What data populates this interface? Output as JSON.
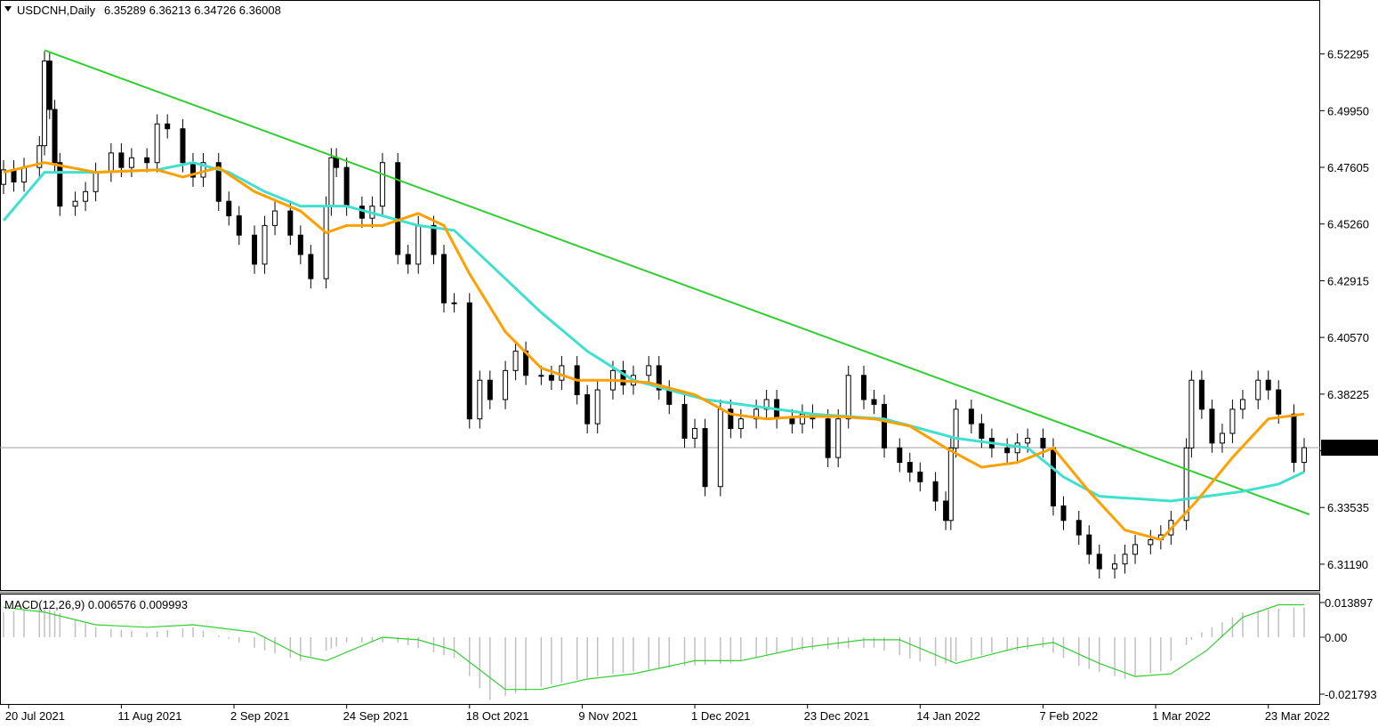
{
  "chart_data": {
    "type": "candlestick",
    "symbol": "USDCNH",
    "timeframe": "Daily",
    "header": {
      "symbol_tf": "USDCNH,Daily",
      "ohlc": "6.35289 6.36213 6.34726 6.36008"
    },
    "last_price": 6.36008,
    "last_price_label": "6.36008",
    "price_axis": {
      "range": [
        6.3012,
        6.5449
      ],
      "ticks": [
        6.52295,
        6.4995,
        6.47605,
        6.4526,
        6.42915,
        6.4057,
        6.38225,
        6.3588,
        6.33535,
        6.3119
      ],
      "tick_labels": [
        "6.52295",
        "6.49950",
        "6.47605",
        "6.45260",
        "6.42915",
        "6.40570",
        "6.38225",
        "",
        "6.33535",
        "6.31190"
      ]
    },
    "date_axis": {
      "start_date": "2021-07-19",
      "end_date": "2022-03-30",
      "labels": [
        "20 Jul 2021",
        "11 Aug 2021",
        "2 Sep 2021",
        "24 Sep 2021",
        "18 Oct 2021",
        "9 Nov 2021",
        "1 Dec 2021",
        "23 Dec 2021",
        "14 Jan 2022",
        "7 Feb 2022",
        "1 Mar 2022",
        "23 Mar 2022"
      ],
      "label_dates": [
        "2021-07-20",
        "2021-08-11",
        "2021-09-02",
        "2021-09-24",
        "2021-10-18",
        "2021-11-09",
        "2021-12-01",
        "2021-12-23",
        "2022-01-14",
        "2022-02-07",
        "2022-03-01",
        "2022-03-23"
      ]
    },
    "close_series": [
      [
        "2021-07-19",
        6.475
      ],
      [
        "2021-07-21",
        6.47
      ],
      [
        "2021-07-23",
        6.476
      ],
      [
        "2021-07-26",
        6.485
      ],
      [
        "2021-07-27",
        6.52
      ],
      [
        "2021-07-28",
        6.5
      ],
      [
        "2021-07-29",
        6.478
      ],
      [
        "2021-07-30",
        6.46
      ],
      [
        "2021-08-02",
        6.462
      ],
      [
        "2021-08-04",
        6.466
      ],
      [
        "2021-08-06",
        6.474
      ],
      [
        "2021-08-09",
        6.482
      ],
      [
        "2021-08-11",
        6.476
      ],
      [
        "2021-08-13",
        6.48
      ],
      [
        "2021-08-16",
        6.478
      ],
      [
        "2021-08-18",
        6.494
      ],
      [
        "2021-08-20",
        6.492
      ],
      [
        "2021-08-23",
        6.478
      ],
      [
        "2021-08-25",
        6.472
      ],
      [
        "2021-08-27",
        6.478
      ],
      [
        "2021-08-30",
        6.462
      ],
      [
        "2021-09-01",
        6.456
      ],
      [
        "2021-09-03",
        6.448
      ],
      [
        "2021-09-06",
        6.436
      ],
      [
        "2021-09-08",
        6.452
      ],
      [
        "2021-09-10",
        6.458
      ],
      [
        "2021-09-13",
        6.448
      ],
      [
        "2021-09-15",
        6.44
      ],
      [
        "2021-09-17",
        6.43
      ],
      [
        "2021-09-20",
        6.46
      ],
      [
        "2021-09-21",
        6.48
      ],
      [
        "2021-09-22",
        6.476
      ],
      [
        "2021-09-24",
        6.46
      ],
      [
        "2021-09-27",
        6.455
      ],
      [
        "2021-09-29",
        6.46
      ],
      [
        "2021-10-01",
        6.478
      ],
      [
        "2021-10-04",
        6.44
      ],
      [
        "2021-10-06",
        6.436
      ],
      [
        "2021-10-08",
        6.452
      ],
      [
        "2021-10-11",
        6.44
      ],
      [
        "2021-10-13",
        6.42
      ],
      [
        "2021-10-15",
        6.42
      ],
      [
        "2021-10-18",
        6.372
      ],
      [
        "2021-10-20",
        6.388
      ],
      [
        "2021-10-22",
        6.38
      ],
      [
        "2021-10-25",
        6.392
      ],
      [
        "2021-10-27",
        6.4
      ],
      [
        "2021-10-29",
        6.39
      ],
      [
        "2021-11-01",
        6.39
      ],
      [
        "2021-11-03",
        6.388
      ],
      [
        "2021-11-05",
        6.394
      ],
      [
        "2021-11-08",
        6.382
      ],
      [
        "2021-11-10",
        6.37
      ],
      [
        "2021-11-12",
        6.384
      ],
      [
        "2021-11-15",
        6.392
      ],
      [
        "2021-11-17",
        6.386
      ],
      [
        "2021-11-19",
        6.39
      ],
      [
        "2021-11-22",
        6.394
      ],
      [
        "2021-11-24",
        6.384
      ],
      [
        "2021-11-26",
        6.378
      ],
      [
        "2021-11-29",
        6.364
      ],
      [
        "2021-12-01",
        6.368
      ],
      [
        "2021-12-03",
        6.344
      ],
      [
        "2021-12-06",
        6.376
      ],
      [
        "2021-12-08",
        6.368
      ],
      [
        "2021-12-10",
        6.372
      ],
      [
        "2021-12-13",
        6.376
      ],
      [
        "2021-12-15",
        6.38
      ],
      [
        "2021-12-17",
        6.372
      ],
      [
        "2021-12-20",
        6.37
      ],
      [
        "2021-12-22",
        6.374
      ],
      [
        "2021-12-24",
        6.372
      ],
      [
        "2021-12-27",
        6.356
      ],
      [
        "2021-12-29",
        6.372
      ],
      [
        "2021-12-31",
        6.39
      ],
      [
        "2022-01-03",
        6.38
      ],
      [
        "2022-01-05",
        6.378
      ],
      [
        "2022-01-07",
        6.36
      ],
      [
        "2022-01-10",
        6.354
      ],
      [
        "2022-01-12",
        6.35
      ],
      [
        "2022-01-14",
        6.346
      ],
      [
        "2022-01-17",
        6.338
      ],
      [
        "2022-01-19",
        6.33
      ],
      [
        "2022-01-20",
        6.36
      ],
      [
        "2022-01-21",
        6.376
      ],
      [
        "2022-01-24",
        6.37
      ],
      [
        "2022-01-26",
        6.364
      ],
      [
        "2022-01-28",
        6.36
      ],
      [
        "2022-01-31",
        6.358
      ],
      [
        "2022-02-02",
        6.362
      ],
      [
        "2022-02-04",
        6.364
      ],
      [
        "2022-02-07",
        6.36
      ],
      [
        "2022-02-09",
        6.336
      ],
      [
        "2022-02-11",
        6.33
      ],
      [
        "2022-02-14",
        6.324
      ],
      [
        "2022-02-16",
        6.316
      ],
      [
        "2022-02-18",
        6.31
      ],
      [
        "2022-02-21",
        6.312
      ],
      [
        "2022-02-23",
        6.316
      ],
      [
        "2022-02-25",
        6.32
      ],
      [
        "2022-02-28",
        6.322
      ],
      [
        "2022-03-02",
        6.324
      ],
      [
        "2022-03-04",
        6.33
      ],
      [
        "2022-03-07",
        6.36
      ],
      [
        "2022-03-08",
        6.388
      ],
      [
        "2022-03-10",
        6.376
      ],
      [
        "2022-03-12",
        6.362
      ],
      [
        "2022-03-14",
        6.366
      ],
      [
        "2022-03-16",
        6.376
      ],
      [
        "2022-03-18",
        6.38
      ],
      [
        "2022-03-21",
        6.388
      ],
      [
        "2022-03-23",
        6.384
      ],
      [
        "2022-03-25",
        6.374
      ],
      [
        "2022-03-28",
        6.354
      ],
      [
        "2022-03-30",
        6.36008
      ]
    ],
    "sma_fast": {
      "color": "#ffa000",
      "points": [
        [
          "2021-07-19",
          6.474
        ],
        [
          "2021-07-27",
          6.478
        ],
        [
          "2021-08-06",
          6.474
        ],
        [
          "2021-08-18",
          6.475
        ],
        [
          "2021-08-23",
          6.472
        ],
        [
          "2021-08-30",
          6.476
        ],
        [
          "2021-09-06",
          6.466
        ],
        [
          "2021-09-15",
          6.458
        ],
        [
          "2021-09-20",
          6.449
        ],
        [
          "2021-09-24",
          6.452
        ],
        [
          "2021-10-01",
          6.452
        ],
        [
          "2021-10-08",
          6.457
        ],
        [
          "2021-10-13",
          6.452
        ],
        [
          "2021-10-18",
          6.432
        ],
        [
          "2021-10-25",
          6.408
        ],
        [
          "2021-11-01",
          6.393
        ],
        [
          "2021-11-08",
          6.388
        ],
        [
          "2021-11-15",
          6.388
        ],
        [
          "2021-11-22",
          6.387
        ],
        [
          "2021-12-01",
          6.382
        ],
        [
          "2021-12-08",
          6.374
        ],
        [
          "2021-12-15",
          6.372
        ],
        [
          "2021-12-22",
          6.373
        ],
        [
          "2021-12-29",
          6.373
        ],
        [
          "2022-01-05",
          6.372
        ],
        [
          "2022-01-12",
          6.369
        ],
        [
          "2022-01-19",
          6.36
        ],
        [
          "2022-01-26",
          6.352
        ],
        [
          "2022-02-02",
          6.354
        ],
        [
          "2022-02-09",
          6.36
        ],
        [
          "2022-02-16",
          6.342
        ],
        [
          "2022-02-23",
          6.326
        ],
        [
          "2022-03-02",
          6.322
        ],
        [
          "2022-03-09",
          6.338
        ],
        [
          "2022-03-16",
          6.356
        ],
        [
          "2022-03-23",
          6.372
        ],
        [
          "2022-03-30",
          6.374
        ]
      ]
    },
    "sma_slow": {
      "color": "#40e0d0",
      "points": [
        [
          "2021-07-19",
          6.454
        ],
        [
          "2021-07-27",
          6.474
        ],
        [
          "2021-08-06",
          6.474
        ],
        [
          "2021-08-18",
          6.475
        ],
        [
          "2021-08-25",
          6.478
        ],
        [
          "2021-09-01",
          6.474
        ],
        [
          "2021-09-08",
          6.466
        ],
        [
          "2021-09-15",
          6.46
        ],
        [
          "2021-09-24",
          6.46
        ],
        [
          "2021-10-01",
          6.456
        ],
        [
          "2021-10-08",
          6.452
        ],
        [
          "2021-10-15",
          6.45
        ],
        [
          "2021-10-22",
          6.436
        ],
        [
          "2021-11-01",
          6.416
        ],
        [
          "2021-11-10",
          6.4
        ],
        [
          "2021-11-19",
          6.388
        ],
        [
          "2021-11-26",
          6.384
        ],
        [
          "2021-12-03",
          6.38
        ],
        [
          "2021-12-10",
          6.378
        ],
        [
          "2021-12-17",
          6.376
        ],
        [
          "2021-12-24",
          6.374
        ],
        [
          "2021-12-31",
          6.373
        ],
        [
          "2022-01-07",
          6.372
        ],
        [
          "2022-01-14",
          6.368
        ],
        [
          "2022-01-21",
          6.364
        ],
        [
          "2022-01-28",
          6.362
        ],
        [
          "2022-02-04",
          6.36
        ],
        [
          "2022-02-11",
          6.348
        ],
        [
          "2022-02-18",
          6.34
        ],
        [
          "2022-02-25",
          6.339
        ],
        [
          "2022-03-04",
          6.338
        ],
        [
          "2022-03-11",
          6.34
        ],
        [
          "2022-03-18",
          6.342
        ],
        [
          "2022-03-25",
          6.345
        ],
        [
          "2022-03-30",
          6.35
        ]
      ]
    },
    "trendline": {
      "color": "#32cd32",
      "start": [
        "2021-07-27",
        6.5245
      ],
      "end": [
        "2022-03-31",
        6.3325
      ]
    },
    "macd": {
      "label": "MACD(12,26,9) 0.006576 0.009993",
      "params": [
        12,
        26,
        9
      ],
      "value": 0.006576,
      "signal": 0.009993,
      "ticks": [
        0.013897,
        0.0,
        -0.021793
      ],
      "tick_labels": [
        "0.013897",
        "0.00",
        "-0.021793"
      ],
      "signal_color": "#32cd32",
      "histogram_color": "#c0c0c0",
      "signal_points": [
        [
          "2021-07-19",
          0.012
        ],
        [
          "2021-07-27",
          0.01
        ],
        [
          "2021-08-06",
          0.005
        ],
        [
          "2021-08-16",
          0.004
        ],
        [
          "2021-08-25",
          0.005
        ],
        [
          "2021-09-06",
          0.002
        ],
        [
          "2021-09-15",
          -0.007
        ],
        [
          "2021-09-20",
          -0.009
        ],
        [
          "2021-10-01",
          0.0
        ],
        [
          "2021-10-08",
          -0.001
        ],
        [
          "2021-10-15",
          -0.005
        ],
        [
          "2021-10-25",
          -0.02
        ],
        [
          "2021-11-01",
          -0.02
        ],
        [
          "2021-11-10",
          -0.016
        ],
        [
          "2021-11-19",
          -0.014
        ],
        [
          "2021-12-01",
          -0.009
        ],
        [
          "2021-12-10",
          -0.009
        ],
        [
          "2021-12-22",
          -0.004
        ],
        [
          "2022-01-03",
          -0.001
        ],
        [
          "2022-01-10",
          -0.001
        ],
        [
          "2022-01-21",
          -0.01
        ],
        [
          "2022-02-02",
          -0.004
        ],
        [
          "2022-02-09",
          -0.002
        ],
        [
          "2022-02-18",
          -0.01
        ],
        [
          "2022-02-25",
          -0.015
        ],
        [
          "2022-03-04",
          -0.014
        ],
        [
          "2022-03-11",
          -0.005
        ],
        [
          "2022-03-18",
          0.008
        ],
        [
          "2022-03-25",
          0.013
        ],
        [
          "2022-03-30",
          0.013
        ]
      ],
      "histogram": [
        [
          "2021-07-19",
          0.01
        ],
        [
          "2021-07-27",
          0.012
        ],
        [
          "2021-08-06",
          0.004
        ],
        [
          "2021-08-16",
          0.002
        ],
        [
          "2021-08-25",
          0.004
        ],
        [
          "2021-09-06",
          -0.004
        ],
        [
          "2021-09-15",
          -0.009
        ],
        [
          "2021-09-24",
          -0.002
        ],
        [
          "2021-10-04",
          -0.002
        ],
        [
          "2021-10-15",
          -0.008
        ],
        [
          "2021-10-22",
          -0.024
        ],
        [
          "2021-11-03",
          -0.018
        ],
        [
          "2021-11-15",
          -0.014
        ],
        [
          "2021-11-29",
          -0.011
        ],
        [
          "2021-12-08",
          -0.01
        ],
        [
          "2021-12-20",
          -0.005
        ],
        [
          "2022-01-05",
          -0.004
        ],
        [
          "2022-01-17",
          -0.011
        ],
        [
          "2022-01-28",
          -0.006
        ],
        [
          "2022-02-07",
          -0.004
        ],
        [
          "2022-02-14",
          -0.011
        ],
        [
          "2022-02-23",
          -0.016
        ],
        [
          "2022-03-02",
          -0.013
        ],
        [
          "2022-03-09",
          0.001
        ],
        [
          "2022-03-18",
          0.01
        ],
        [
          "2022-03-28",
          0.012
        ]
      ]
    }
  }
}
